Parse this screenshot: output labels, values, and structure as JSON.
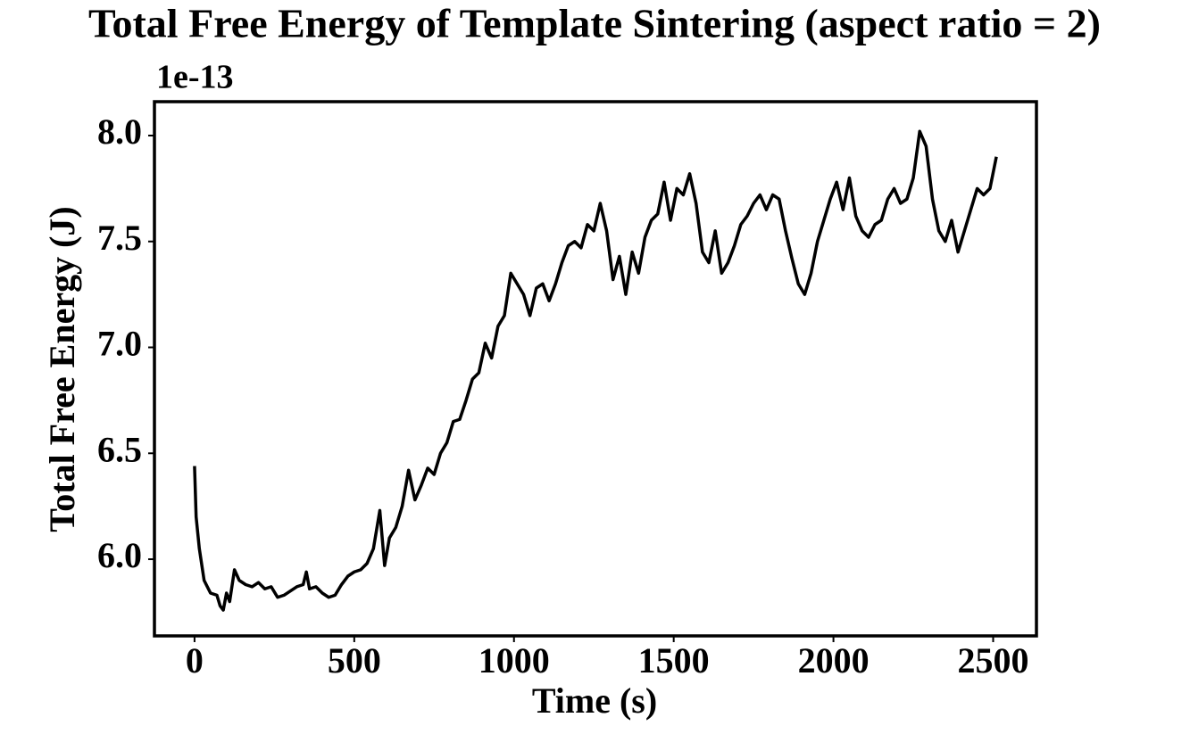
{
  "chart_data": {
    "type": "line",
    "title": "Total Free Energy of Template Sintering (aspect ratio = 2)",
    "x_label": "Time (s)",
    "y_label": "Total Free Energy (J)",
    "y_offset_label": "1e-13",
    "x": [
      0,
      5,
      15,
      30,
      50,
      70,
      80,
      90,
      100,
      110,
      125,
      140,
      160,
      180,
      200,
      220,
      240,
      260,
      280,
      300,
      320,
      340,
      350,
      360,
      380,
      400,
      420,
      440,
      460,
      480,
      500,
      520,
      540,
      560,
      580,
      595,
      610,
      630,
      650,
      670,
      690,
      710,
      730,
      750,
      770,
      790,
      810,
      830,
      850,
      870,
      890,
      910,
      930,
      950,
      970,
      990,
      1010,
      1030,
      1050,
      1070,
      1090,
      1110,
      1130,
      1150,
      1170,
      1190,
      1210,
      1230,
      1250,
      1270,
      1290,
      1310,
      1330,
      1350,
      1370,
      1390,
      1410,
      1430,
      1450,
      1470,
      1490,
      1510,
      1530,
      1550,
      1570,
      1590,
      1610,
      1630,
      1650,
      1670,
      1690,
      1710,
      1730,
      1750,
      1770,
      1790,
      1810,
      1830,
      1850,
      1870,
      1890,
      1910,
      1930,
      1950,
      1970,
      1990,
      2010,
      2030,
      2050,
      2070,
      2090,
      2110,
      2130,
      2150,
      2170,
      2190,
      2210,
      2230,
      2250,
      2270,
      2290,
      2310,
      2330,
      2350,
      2370,
      2390,
      2410,
      2430,
      2450,
      2470,
      2490,
      2510
    ],
    "series": [
      {
        "name": "Total Free Energy",
        "color": "#000000",
        "values": [
          6.44,
          6.2,
          6.05,
          5.9,
          5.84,
          5.83,
          5.78,
          5.76,
          5.84,
          5.8,
          5.95,
          5.9,
          5.88,
          5.87,
          5.89,
          5.86,
          5.87,
          5.82,
          5.83,
          5.85,
          5.87,
          5.88,
          5.94,
          5.86,
          5.87,
          5.84,
          5.82,
          5.83,
          5.88,
          5.92,
          5.94,
          5.95,
          5.98,
          6.05,
          6.23,
          5.97,
          6.1,
          6.15,
          6.25,
          6.42,
          6.28,
          6.35,
          6.43,
          6.4,
          6.5,
          6.55,
          6.65,
          6.66,
          6.75,
          6.85,
          6.88,
          7.02,
          6.95,
          7.1,
          7.15,
          7.35,
          7.3,
          7.25,
          7.15,
          7.28,
          7.3,
          7.22,
          7.3,
          7.4,
          7.48,
          7.5,
          7.47,
          7.58,
          7.55,
          7.68,
          7.55,
          7.32,
          7.43,
          7.25,
          7.45,
          7.35,
          7.52,
          7.6,
          7.63,
          7.78,
          7.6,
          7.75,
          7.72,
          7.82,
          7.68,
          7.45,
          7.4,
          7.55,
          7.35,
          7.4,
          7.48,
          7.58,
          7.62,
          7.68,
          7.72,
          7.65,
          7.72,
          7.7,
          7.55,
          7.42,
          7.3,
          7.25,
          7.35,
          7.5,
          7.6,
          7.7,
          7.78,
          7.65,
          7.8,
          7.62,
          7.55,
          7.52,
          7.58,
          7.6,
          7.7,
          7.75,
          7.68,
          7.7,
          7.8,
          8.02,
          7.95,
          7.7,
          7.55,
          7.5,
          7.6,
          7.45,
          7.55,
          7.65,
          7.75,
          7.72,
          7.75,
          7.9
        ]
      }
    ],
    "xlim": [
      -125.5,
      2635.5
    ],
    "xticks": [
      0,
      500,
      1000,
      1500,
      2000,
      2500
    ],
    "ylim": [
      5.638,
      8.16
    ],
    "yticks": [
      {
        "value": 6,
        "label": "6.0"
      },
      {
        "value": 6.5,
        "label": "6.5"
      },
      {
        "value": 7,
        "label": "7.0"
      },
      {
        "value": 7.5,
        "label": "7.5"
      },
      {
        "value": 8,
        "label": "8.0"
      }
    ],
    "grid": false
  }
}
